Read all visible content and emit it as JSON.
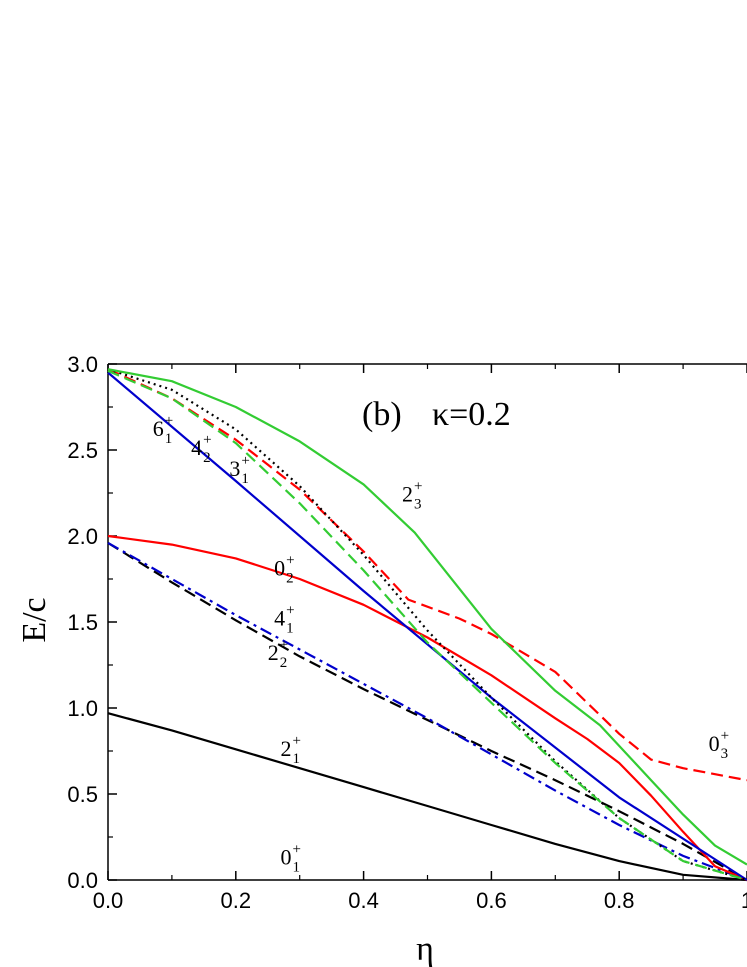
{
  "chart_data": {
    "type": "line",
    "title": "",
    "panel_label": "(b)",
    "parameter_label": "κ=0.2",
    "xlabel": "η",
    "ylabel": "E/c",
    "xlim": [
      0.0,
      1.0
    ],
    "ylim": [
      0.0,
      3.0
    ],
    "x_ticks": [
      "0.0",
      "0.2",
      "0.4",
      "0.6",
      "0.8",
      "1"
    ],
    "y_ticks": [
      "0.0",
      "0.5",
      "1.0",
      "1.5",
      "2.0",
      "2.5",
      "3.0"
    ],
    "grid": false,
    "series": [
      {
        "name": "2_1^+",
        "color": "#000000",
        "style": "solid",
        "x": [
          0.0,
          0.1,
          0.2,
          0.3,
          0.4,
          0.5,
          0.6,
          0.7,
          0.8,
          0.9,
          1.0
        ],
        "y": [
          0.97,
          0.87,
          0.76,
          0.65,
          0.54,
          0.43,
          0.32,
          0.21,
          0.11,
          0.03,
          0.0
        ]
      },
      {
        "name": "2_2^+",
        "color": "#000000",
        "style": "dash",
        "x": [
          0.0,
          0.1,
          0.2,
          0.3,
          0.4,
          0.5,
          0.6,
          0.7,
          0.8,
          0.9,
          1.0
        ],
        "y": [
          1.96,
          1.73,
          1.51,
          1.3,
          1.11,
          0.93,
          0.75,
          0.58,
          0.4,
          0.21,
          0.0
        ]
      },
      {
        "name": "4_1^+",
        "color": "#0000cc",
        "style": "dashdot",
        "x": [
          0.0,
          0.1,
          0.2,
          0.3,
          0.4,
          0.5,
          0.6,
          0.7,
          0.8,
          0.9,
          1.0
        ],
        "y": [
          1.96,
          1.75,
          1.54,
          1.34,
          1.14,
          0.94,
          0.73,
          0.52,
          0.32,
          0.14,
          0.0
        ]
      },
      {
        "name": "0_2^+",
        "color": "#ff0000",
        "style": "solid",
        "x": [
          0.0,
          0.1,
          0.2,
          0.3,
          0.4,
          0.5,
          0.6,
          0.7,
          0.75,
          0.8,
          0.85,
          0.9,
          0.95,
          1.0
        ],
        "y": [
          2.0,
          1.95,
          1.87,
          1.75,
          1.6,
          1.41,
          1.19,
          0.94,
          0.82,
          0.68,
          0.49,
          0.28,
          0.08,
          0.0
        ]
      },
      {
        "name": "3_1^+",
        "color": "#0000cc",
        "style": "solid",
        "x": [
          0.0,
          0.2,
          0.4,
          0.6,
          0.8,
          1.0
        ],
        "y": [
          2.95,
          2.32,
          1.68,
          1.06,
          0.48,
          0.0
        ]
      },
      {
        "name": "4_2^+",
        "color": "#ff0000",
        "style": "dash",
        "x": [
          0.0,
          0.1,
          0.2,
          0.3,
          0.4,
          0.47,
          0.55,
          0.6,
          0.7,
          0.8,
          0.85,
          0.9,
          1.0
        ],
        "y": [
          2.97,
          2.8,
          2.56,
          2.27,
          1.91,
          1.63,
          1.52,
          1.43,
          1.21,
          0.85,
          0.7,
          0.65,
          0.58
        ]
      },
      {
        "name": "6_1^+",
        "color": "#000000",
        "style": "dot",
        "x": [
          0.0,
          0.1,
          0.2,
          0.3,
          0.4,
          0.5,
          0.6,
          0.7,
          0.8,
          0.9,
          1.0
        ],
        "y": [
          2.97,
          2.85,
          2.62,
          2.29,
          1.89,
          1.45,
          1.06,
          0.69,
          0.36,
          0.11,
          0.0
        ]
      },
      {
        "name": "4_2^+ (green)",
        "color": "#33cc33",
        "style": "dash",
        "x": [
          0.0,
          0.1,
          0.2,
          0.3,
          0.4,
          0.5,
          0.6,
          0.7,
          0.8,
          0.9,
          1.0
        ],
        "y": [
          2.96,
          2.8,
          2.54,
          2.19,
          1.8,
          1.38,
          1.03,
          0.68,
          0.36,
          0.11,
          0.0
        ]
      },
      {
        "name": "2_3^+",
        "color": "#33cc33",
        "style": "solid",
        "x": [
          0.0,
          0.1,
          0.2,
          0.3,
          0.4,
          0.48,
          0.6,
          0.7,
          0.77,
          0.85,
          0.9,
          0.95,
          1.0
        ],
        "y": [
          2.97,
          2.9,
          2.75,
          2.55,
          2.3,
          2.02,
          1.46,
          1.1,
          0.9,
          0.58,
          0.38,
          0.2,
          0.09
        ]
      }
    ],
    "level_labels": [
      {
        "j": "6",
        "sub": "1",
        "sup": "+",
        "x": 0.07,
        "y": 2.58
      },
      {
        "j": "4",
        "sub": "2",
        "sup": "+",
        "x": 0.13,
        "y": 2.47
      },
      {
        "j": "3",
        "sub": "1",
        "sup": "+",
        "x": 0.19,
        "y": 2.35
      },
      {
        "j": "2",
        "sub": "3",
        "sup": "+",
        "x": 0.46,
        "y": 2.2
      },
      {
        "j": "0",
        "sub": "2",
        "sup": "+",
        "x": 0.26,
        "y": 1.77
      },
      {
        "j": "4",
        "sub": "1",
        "sup": "+",
        "x": 0.26,
        "y": 1.48
      },
      {
        "j": "2",
        "sub": "2",
        "sup": "+",
        "x": 0.25,
        "y": 1.28
      },
      {
        "j": "2",
        "sub": "1",
        "sup": "+",
        "x": 0.27,
        "y": 0.72
      },
      {
        "j": "0",
        "sub": "1",
        "sup": "+",
        "x": 0.27,
        "y": 0.09
      },
      {
        "j": "0",
        "sub": "3",
        "sup": "+",
        "x": 0.94,
        "y": 0.75
      }
    ]
  }
}
